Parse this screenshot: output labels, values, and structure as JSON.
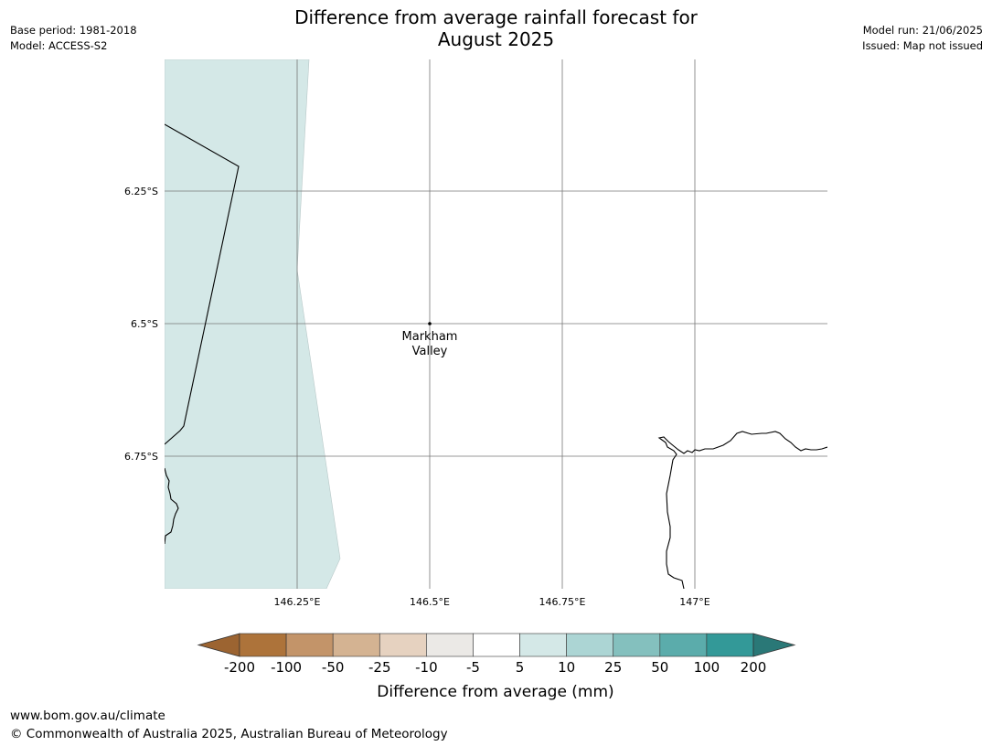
{
  "header": {
    "base_period": "Base period: 1981-2018",
    "model": "Model: ACCESS-S2",
    "title_line1": "Difference from average rainfall forecast for",
    "title_line2": "August 2025",
    "model_run": "Model run: 21/06/2025",
    "issued": "Issued: Map not issued"
  },
  "map": {
    "lat_labels": [
      "6.25°S",
      "6.5°S",
      "6.75°S"
    ],
    "lon_labels": [
      "146.25°E",
      "146.5°E",
      "146.75°E",
      "147°E"
    ],
    "place": {
      "line1": "Markham",
      "line2": "Valley",
      "lat": -6.5,
      "lon": 146.5
    },
    "shade_category": "5 to 10",
    "shade_color": "#d4e8e7"
  },
  "colorbar": {
    "title": "Difference from average (mm)",
    "tick_labels": [
      "-200",
      "-100",
      "-50",
      "-25",
      "-10",
      "-5",
      "5",
      "10",
      "25",
      "50",
      "100",
      "200"
    ],
    "under_color": "#9c6431",
    "over_color": "#2a7877",
    "colors": [
      "#ad733a",
      "#c39469",
      "#d4b392",
      "#e6d2c0",
      "#ebe9e6",
      "#ffffff",
      "#d4e8e7",
      "#acd5d4",
      "#84c0be",
      "#5bacab",
      "#339998"
    ]
  },
  "footer": {
    "url": "www.bom.gov.au/climate",
    "copyright": "© Commonwealth of Australia 2025, Australian Bureau of Meteorology"
  }
}
